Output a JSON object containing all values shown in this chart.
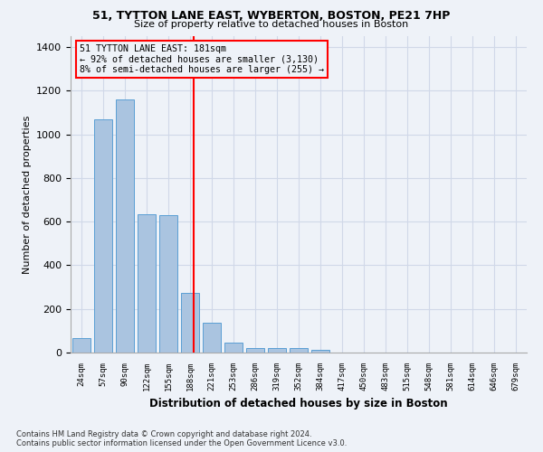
{
  "title_line1": "51, TYTTON LANE EAST, WYBERTON, BOSTON, PE21 7HP",
  "title_line2": "Size of property relative to detached houses in Boston",
  "xlabel": "Distribution of detached houses by size in Boston",
  "ylabel": "Number of detached properties",
  "footnote": "Contains HM Land Registry data © Crown copyright and database right 2024.\nContains public sector information licensed under the Open Government Licence v3.0.",
  "bar_labels": [
    "24sqm",
    "57sqm",
    "90sqm",
    "122sqm",
    "155sqm",
    "188sqm",
    "221sqm",
    "253sqm",
    "286sqm",
    "319sqm",
    "352sqm",
    "384sqm",
    "417sqm",
    "450sqm",
    "483sqm",
    "515sqm",
    "548sqm",
    "581sqm",
    "614sqm",
    "646sqm",
    "679sqm"
  ],
  "bar_values": [
    65,
    1070,
    1160,
    635,
    630,
    275,
    135,
    45,
    22,
    20,
    22,
    12,
    0,
    0,
    0,
    0,
    0,
    0,
    0,
    0,
    0
  ],
  "bar_color": "#aac4e0",
  "bar_edgecolor": "#5a9fd4",
  "grid_color": "#d0d8e8",
  "background_color": "#eef2f8",
  "vline_x": 5.18,
  "vline_color": "red",
  "annotation_text": "51 TYTTON LANE EAST: 181sqm\n← 92% of detached houses are smaller (3,130)\n8% of semi-detached houses are larger (255) →",
  "annotation_box_color": "red",
  "ylim": [
    0,
    1450
  ],
  "yticks": [
    0,
    200,
    400,
    600,
    800,
    1000,
    1200,
    1400
  ]
}
